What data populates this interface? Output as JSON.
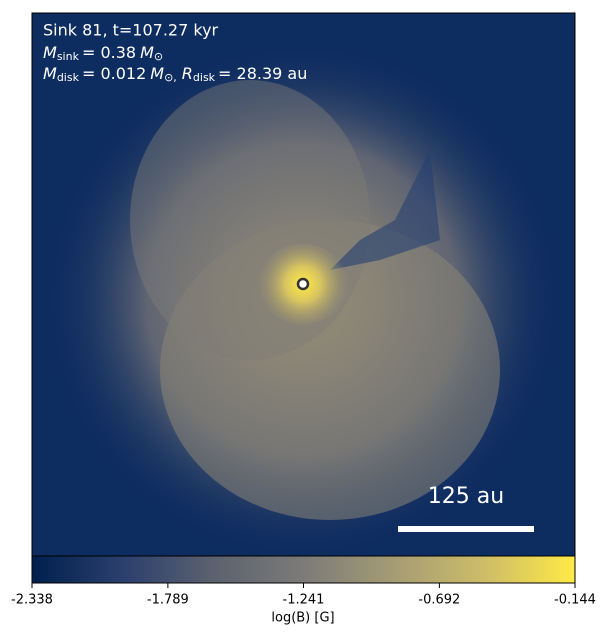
{
  "header": {
    "line1": "Sink 81, t=107.27 kyr",
    "line2": {
      "symbol": "M",
      "subscript": "sink",
      "value": "= 0.38",
      "unit": "M",
      "unit_subscript": "⊙"
    },
    "line3": {
      "symbol": "M",
      "subscript": "disk",
      "value": "= 0.012",
      "unit": "M",
      "unit_subscript": "⊙,",
      "symbol2": "R",
      "subscript2": "disk",
      "value2": "= 28.39 au"
    }
  },
  "scale_bar": {
    "label": "125 au"
  },
  "colorbar": {
    "label": "log(B) [G]",
    "lim": [
      -2.338,
      -0.144
    ],
    "ticks": [
      -2.338,
      -1.789,
      -1.241,
      -0.692,
      -0.144
    ],
    "colors": [
      "#00204d",
      "#2b3f6e",
      "#5b616e",
      "#7c7b78",
      "#a59c74",
      "#cdbd68",
      "#ffea46"
    ]
  }
}
